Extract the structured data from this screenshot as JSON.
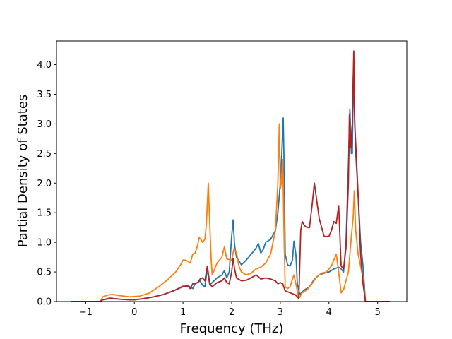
{
  "chart_data": {
    "type": "line",
    "title": "",
    "xlabel": "Frequency (THz)",
    "ylabel": "Partial Density of States",
    "xlim": [
      -1.6,
      5.6
    ],
    "ylim": [
      0.0,
      4.4
    ],
    "grid": false,
    "legend": "none",
    "x_ticks": [
      {
        "value": -1,
        "label": "−1"
      },
      {
        "value": 0,
        "label": "0"
      },
      {
        "value": 1,
        "label": "1"
      },
      {
        "value": 2,
        "label": "2"
      },
      {
        "value": 3,
        "label": "3"
      },
      {
        "value": 4,
        "label": "4"
      },
      {
        "value": 5,
        "label": "5"
      }
    ],
    "y_ticks": [
      {
        "value": 0.0,
        "label": "0.0"
      },
      {
        "value": 0.5,
        "label": "0.5"
      },
      {
        "value": 1.0,
        "label": "1.0"
      },
      {
        "value": 1.5,
        "label": "1.5"
      },
      {
        "value": 2.0,
        "label": "2.0"
      },
      {
        "value": 2.5,
        "label": "2.5"
      },
      {
        "value": 3.0,
        "label": "3.0"
      },
      {
        "value": 3.5,
        "label": "3.5"
      },
      {
        "value": 4.0,
        "label": "4.0"
      }
    ],
    "series": [
      {
        "color": "#1f77b4",
        "points": [
          [
            -1.3,
            0.0
          ],
          [
            -0.7,
            0.0
          ],
          [
            -0.65,
            0.03
          ],
          [
            -0.5,
            0.06
          ],
          [
            -0.3,
            0.04
          ],
          [
            -0.1,
            0.03
          ],
          [
            0.0,
            0.03
          ],
          [
            0.2,
            0.05
          ],
          [
            0.4,
            0.08
          ],
          [
            0.6,
            0.12
          ],
          [
            0.8,
            0.18
          ],
          [
            1.0,
            0.25
          ],
          [
            1.1,
            0.27
          ],
          [
            1.2,
            0.22
          ],
          [
            1.25,
            0.3
          ],
          [
            1.3,
            0.32
          ],
          [
            1.35,
            0.35
          ],
          [
            1.4,
            0.28
          ],
          [
            1.45,
            0.25
          ],
          [
            1.5,
            0.55
          ],
          [
            1.55,
            0.28
          ],
          [
            1.6,
            0.32
          ],
          [
            1.7,
            0.4
          ],
          [
            1.8,
            0.45
          ],
          [
            1.85,
            0.52
          ],
          [
            1.9,
            0.4
          ],
          [
            1.95,
            0.5
          ],
          [
            2.0,
            1.1
          ],
          [
            2.03,
            1.38
          ],
          [
            2.06,
            0.95
          ],
          [
            2.1,
            0.75
          ],
          [
            2.2,
            0.62
          ],
          [
            2.3,
            0.7
          ],
          [
            2.4,
            0.8
          ],
          [
            2.5,
            0.9
          ],
          [
            2.55,
            0.98
          ],
          [
            2.6,
            0.82
          ],
          [
            2.65,
            0.88
          ],
          [
            2.7,
            1.0
          ],
          [
            2.8,
            1.05
          ],
          [
            2.9,
            1.2
          ],
          [
            2.95,
            1.5
          ],
          [
            3.0,
            2.0
          ],
          [
            3.03,
            2.5
          ],
          [
            3.06,
            3.1
          ],
          [
            3.08,
            2.2
          ],
          [
            3.1,
            0.8
          ],
          [
            3.15,
            0.62
          ],
          [
            3.2,
            0.6
          ],
          [
            3.25,
            0.7
          ],
          [
            3.28,
            1.02
          ],
          [
            3.32,
            0.8
          ],
          [
            3.35,
            0.3
          ],
          [
            3.4,
            0.12
          ],
          [
            3.5,
            0.2
          ],
          [
            3.6,
            0.25
          ],
          [
            3.7,
            0.38
          ],
          [
            3.8,
            0.45
          ],
          [
            3.9,
            0.48
          ],
          [
            4.0,
            0.5
          ],
          [
            4.1,
            0.55
          ],
          [
            4.2,
            0.58
          ],
          [
            4.25,
            0.55
          ],
          [
            4.3,
            0.5
          ],
          [
            4.35,
            1.0
          ],
          [
            4.4,
            2.3
          ],
          [
            4.43,
            3.25
          ],
          [
            4.46,
            2.5
          ],
          [
            4.48,
            2.5
          ],
          [
            4.5,
            3.8
          ],
          [
            4.52,
            3.3
          ],
          [
            4.55,
            2.5
          ],
          [
            4.6,
            1.8
          ],
          [
            4.65,
            1.0
          ],
          [
            4.7,
            0.6
          ],
          [
            4.75,
            0.0
          ],
          [
            5.25,
            0.0
          ]
        ]
      },
      {
        "color": "#ff7f0e",
        "points": [
          [
            -1.3,
            0.0
          ],
          [
            -0.7,
            0.0
          ],
          [
            -0.65,
            0.08
          ],
          [
            -0.55,
            0.11
          ],
          [
            -0.45,
            0.12
          ],
          [
            -0.3,
            0.1
          ],
          [
            -0.1,
            0.08
          ],
          [
            0.1,
            0.09
          ],
          [
            0.3,
            0.14
          ],
          [
            0.5,
            0.25
          ],
          [
            0.7,
            0.38
          ],
          [
            0.85,
            0.5
          ],
          [
            0.95,
            0.62
          ],
          [
            1.0,
            0.7
          ],
          [
            1.05,
            0.7
          ],
          [
            1.1,
            0.68
          ],
          [
            1.15,
            0.65
          ],
          [
            1.2,
            0.8
          ],
          [
            1.25,
            0.82
          ],
          [
            1.3,
            0.95
          ],
          [
            1.33,
            1.08
          ],
          [
            1.37,
            1.05
          ],
          [
            1.4,
            1.0
          ],
          [
            1.45,
            1.05
          ],
          [
            1.48,
            1.3
          ],
          [
            1.52,
            2.0
          ],
          [
            1.55,
            1.3
          ],
          [
            1.58,
            0.7
          ],
          [
            1.6,
            0.45
          ],
          [
            1.65,
            0.55
          ],
          [
            1.7,
            0.65
          ],
          [
            1.8,
            0.75
          ],
          [
            1.85,
            0.92
          ],
          [
            1.9,
            0.72
          ],
          [
            2.0,
            0.7
          ],
          [
            2.05,
            0.9
          ],
          [
            2.1,
            0.82
          ],
          [
            2.15,
            0.6
          ],
          [
            2.2,
            0.5
          ],
          [
            2.3,
            0.45
          ],
          [
            2.4,
            0.48
          ],
          [
            2.5,
            0.55
          ],
          [
            2.6,
            0.58
          ],
          [
            2.7,
            0.65
          ],
          [
            2.8,
            0.8
          ],
          [
            2.9,
            1.2
          ],
          [
            2.95,
            2.0
          ],
          [
            2.98,
            3.0
          ],
          [
            3.0,
            1.9
          ],
          [
            3.02,
            2.0
          ],
          [
            3.05,
            2.4
          ],
          [
            3.08,
            1.0
          ],
          [
            3.1,
            0.25
          ],
          [
            3.15,
            0.22
          ],
          [
            3.2,
            0.25
          ],
          [
            3.28,
            0.45
          ],
          [
            3.32,
            0.3
          ],
          [
            3.38,
            0.05
          ],
          [
            3.45,
            0.15
          ],
          [
            3.55,
            0.2
          ],
          [
            3.65,
            0.3
          ],
          [
            3.75,
            0.42
          ],
          [
            3.85,
            0.48
          ],
          [
            3.95,
            0.5
          ],
          [
            4.05,
            0.6
          ],
          [
            4.15,
            0.8
          ],
          [
            4.2,
            0.5
          ],
          [
            4.25,
            0.15
          ],
          [
            4.3,
            0.2
          ],
          [
            4.35,
            0.35
          ],
          [
            4.4,
            0.5
          ],
          [
            4.45,
            1.0
          ],
          [
            4.5,
            1.45
          ],
          [
            4.52,
            1.87
          ],
          [
            4.55,
            1.2
          ],
          [
            4.6,
            0.8
          ],
          [
            4.7,
            0.4
          ],
          [
            4.75,
            0.0
          ],
          [
            5.25,
            0.0
          ]
        ]
      },
      {
        "color": "#b22222",
        "points": [
          [
            -1.3,
            0.0
          ],
          [
            -0.7,
            0.0
          ],
          [
            -0.65,
            0.03
          ],
          [
            -0.5,
            0.05
          ],
          [
            -0.3,
            0.04
          ],
          [
            -0.1,
            0.03
          ],
          [
            0.0,
            0.03
          ],
          [
            0.2,
            0.05
          ],
          [
            0.4,
            0.08
          ],
          [
            0.6,
            0.12
          ],
          [
            0.8,
            0.18
          ],
          [
            1.0,
            0.26
          ],
          [
            1.1,
            0.26
          ],
          [
            1.15,
            0.22
          ],
          [
            1.2,
            0.3
          ],
          [
            1.3,
            0.32
          ],
          [
            1.35,
            0.38
          ],
          [
            1.4,
            0.4
          ],
          [
            1.45,
            0.35
          ],
          [
            1.5,
            0.6
          ],
          [
            1.55,
            0.3
          ],
          [
            1.6,
            0.25
          ],
          [
            1.7,
            0.32
          ],
          [
            1.8,
            0.35
          ],
          [
            1.85,
            0.4
          ],
          [
            1.9,
            0.32
          ],
          [
            1.95,
            0.3
          ],
          [
            2.0,
            0.5
          ],
          [
            2.03,
            0.73
          ],
          [
            2.06,
            0.55
          ],
          [
            2.1,
            0.4
          ],
          [
            2.2,
            0.35
          ],
          [
            2.3,
            0.36
          ],
          [
            2.4,
            0.4
          ],
          [
            2.5,
            0.45
          ],
          [
            2.55,
            0.42
          ],
          [
            2.6,
            0.38
          ],
          [
            2.7,
            0.4
          ],
          [
            2.8,
            0.38
          ],
          [
            2.9,
            0.35
          ],
          [
            2.95,
            0.3
          ],
          [
            3.0,
            0.32
          ],
          [
            3.05,
            0.3
          ],
          [
            3.1,
            0.18
          ],
          [
            3.2,
            0.15
          ],
          [
            3.25,
            0.13
          ],
          [
            3.3,
            0.12
          ],
          [
            3.35,
            0.08
          ],
          [
            3.38,
            0.05
          ],
          [
            3.42,
            1.2
          ],
          [
            3.45,
            1.35
          ],
          [
            3.5,
            1.28
          ],
          [
            3.55,
            1.25
          ],
          [
            3.6,
            1.25
          ],
          [
            3.65,
            1.6
          ],
          [
            3.7,
            2.0
          ],
          [
            3.75,
            1.7
          ],
          [
            3.8,
            1.4
          ],
          [
            3.85,
            1.25
          ],
          [
            3.9,
            1.1
          ],
          [
            4.0,
            1.1
          ],
          [
            4.05,
            1.2
          ],
          [
            4.1,
            1.35
          ],
          [
            4.15,
            1.32
          ],
          [
            4.2,
            1.62
          ],
          [
            4.25,
            0.6
          ],
          [
            4.3,
            0.55
          ],
          [
            4.35,
            0.9
          ],
          [
            4.4,
            2.0
          ],
          [
            4.42,
            3.15
          ],
          [
            4.45,
            2.6
          ],
          [
            4.48,
            3.0
          ],
          [
            4.51,
            4.23
          ],
          [
            4.53,
            3.0
          ],
          [
            4.56,
            2.5
          ],
          [
            4.6,
            1.8
          ],
          [
            4.65,
            0.8
          ],
          [
            4.7,
            0.3
          ],
          [
            4.75,
            0.0
          ],
          [
            5.25,
            0.0
          ]
        ]
      }
    ]
  }
}
